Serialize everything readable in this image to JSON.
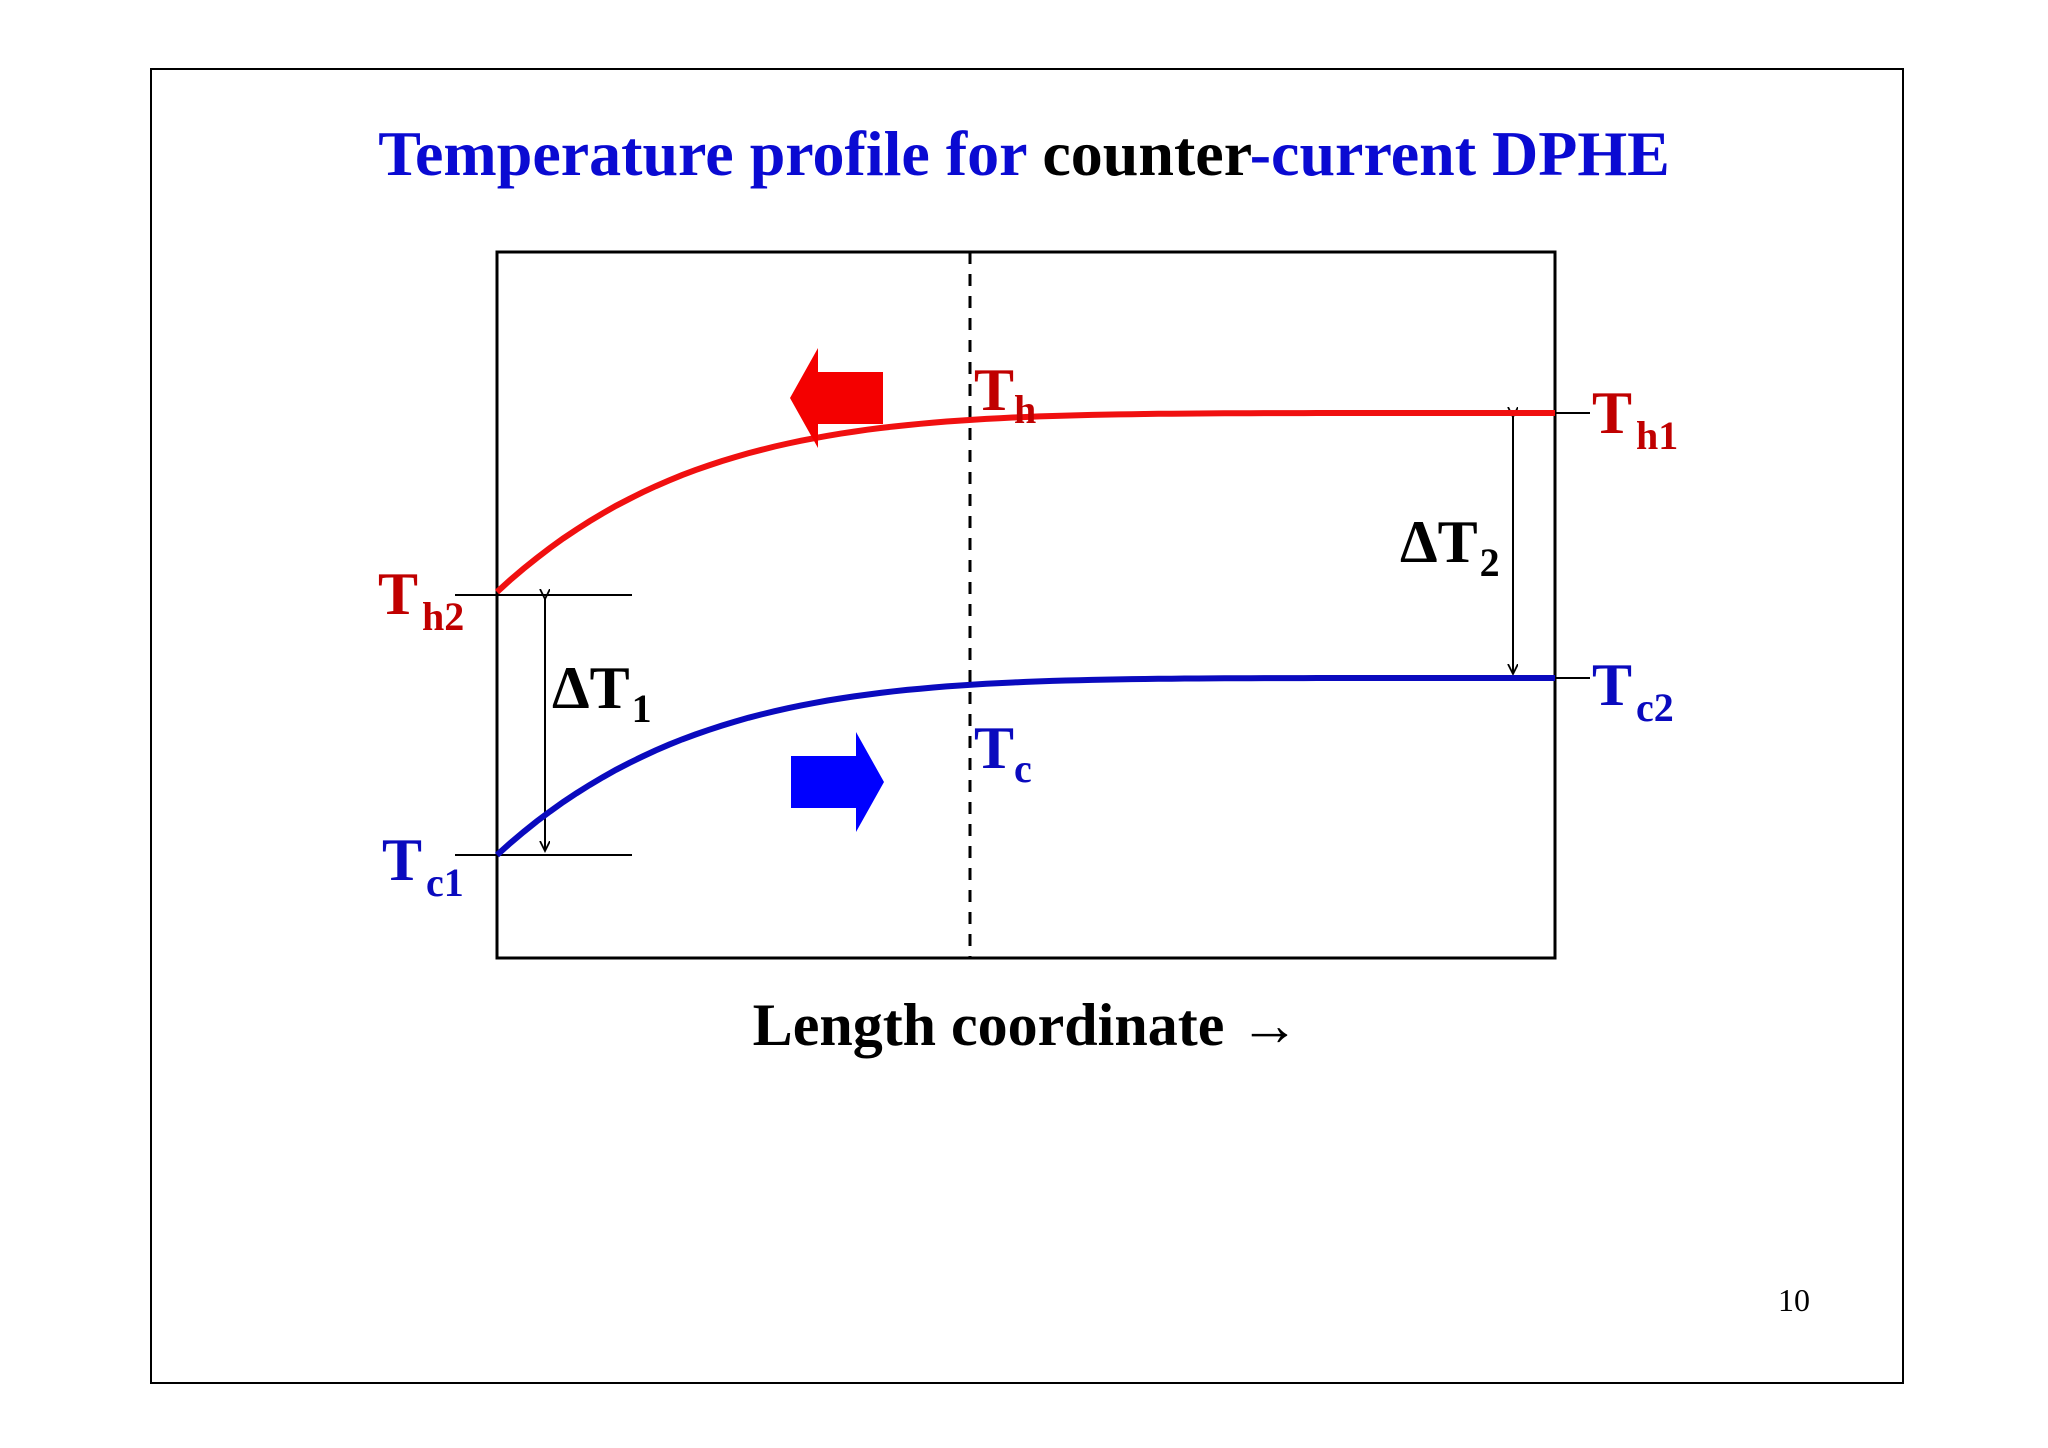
{
  "title": {
    "part1": "Temperature profile for ",
    "part2": "counter",
    "part3": "-current DPHE"
  },
  "labels": {
    "th": {
      "main": "T",
      "sub": "h"
    },
    "th1": {
      "main": "T",
      "sub": "h1"
    },
    "th2": {
      "main": "T",
      "sub": "h2"
    },
    "tc": {
      "main": "T",
      "sub": "c"
    },
    "tc1": {
      "main": "T",
      "sub": "c1"
    },
    "tc2": {
      "main": "T",
      "sub": "c2"
    },
    "dt1": {
      "main": "ΔT",
      "sub": "1"
    },
    "dt2": {
      "main": "ΔT",
      "sub": "2"
    }
  },
  "xaxis_label": "Length coordinate →",
  "page_number": "10",
  "colors": {
    "hot": "#f01010",
    "hot_label": "#c00000",
    "cold": "#0a0abe",
    "cold_arrow": "#0000ff",
    "title_blue": "#0a0ad2"
  },
  "icons": {
    "hot_flow": "left-arrow-icon",
    "cold_flow": "right-arrow-icon"
  }
}
